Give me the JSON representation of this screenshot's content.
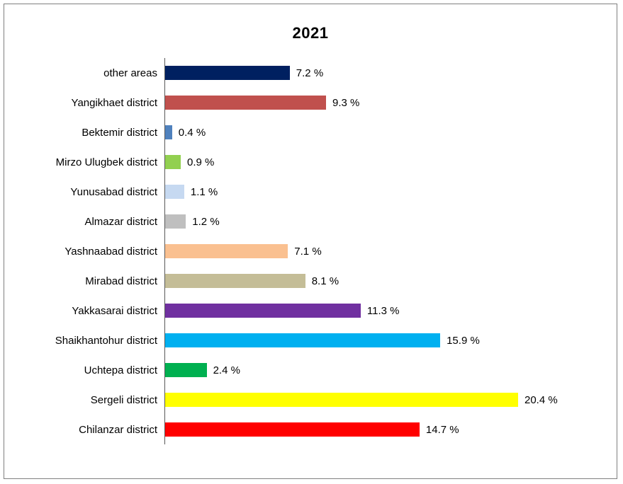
{
  "chart_data": {
    "type": "bar",
    "orientation": "horizontal",
    "title": "2021",
    "unit": "%",
    "xlim": [
      0,
      20.4
    ],
    "grid": false,
    "legend": false,
    "categories": [
      "other areas",
      "Yangikhaet  district",
      "Bektemir district",
      "Mirzo Ulugbek district",
      "Yunusabad district",
      "Almazar  district",
      "Yashnaabad district",
      "Mirabad district",
      "Yakkasarai district",
      "Shaikhantohur district",
      "Uchtepa district",
      "Sergeli district",
      "Chilanzar district"
    ],
    "values": [
      7.2,
      9.3,
      0.4,
      0.9,
      1.1,
      1.2,
      7.1,
      8.1,
      11.3,
      15.9,
      2.4,
      20.4,
      14.7
    ],
    "value_labels": [
      "7.2 %",
      "9.3  %",
      "0.4 %",
      "0.9 %",
      "1.1 %",
      "1.2 %",
      "7.1 %",
      "8.1 %",
      "11.3 %",
      "15.9 %",
      "2.4 %",
      "20.4 %",
      "14.7 %"
    ],
    "bar_colors": [
      "#002060",
      "#C0504D",
      "#4F81BD",
      "#92D050",
      "#C6D9F1",
      "#BFBFBF",
      "#FAC090",
      "#C4BD97",
      "#7030A0",
      "#00B0F0",
      "#00B050",
      "#FFFF00",
      "#FF0000"
    ]
  }
}
